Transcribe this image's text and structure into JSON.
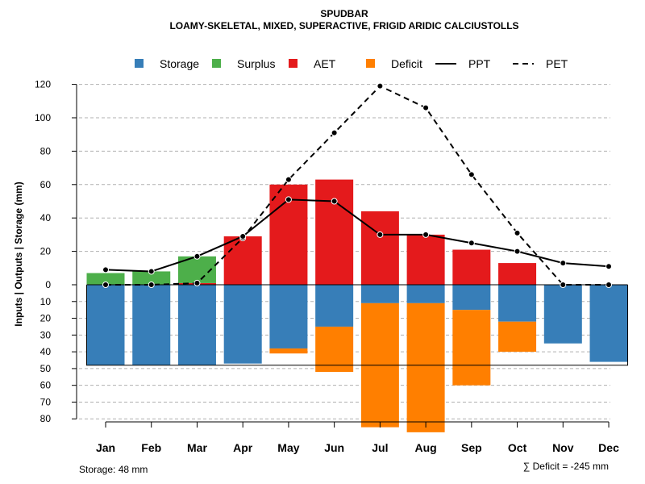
{
  "chart_data": {
    "type": "bar",
    "title": "SPUDBAR",
    "subtitle": "LOAMY-SKELETAL, MIXED, SUPERACTIVE, FRIGID ARIDIC CALCIUSTOLLS",
    "ylabel": "Inputs | Outputs | Storage    (mm)",
    "ylim_upper": [
      0,
      120
    ],
    "ylim_lower": [
      0,
      80
    ],
    "upper_ticks": [
      0,
      20,
      40,
      60,
      80,
      100,
      120
    ],
    "lower_ticks": [
      10,
      20,
      30,
      40,
      50,
      60,
      70,
      80
    ],
    "categories": [
      "Jan",
      "Feb",
      "Mar",
      "Apr",
      "May",
      "Jun",
      "Jul",
      "Aug",
      "Sep",
      "Oct",
      "Nov",
      "Dec"
    ],
    "legend": [
      "Storage",
      "Surplus",
      "AET",
      "Deficit",
      "PPT",
      "PET"
    ],
    "colors": {
      "Storage": "#377eb8",
      "Surplus": "#4daf4a",
      "AET": "#e41a1c",
      "Deficit": "#ff7f00",
      "PPT": "#000000",
      "PET": "#000000"
    },
    "series": [
      {
        "name": "Surplus",
        "values": [
          7,
          8,
          16,
          0,
          0,
          0,
          0,
          0,
          0,
          0,
          0,
          0
        ]
      },
      {
        "name": "AET",
        "values": [
          0,
          0,
          1,
          29,
          60,
          63,
          44,
          30,
          21,
          13,
          0,
          0
        ]
      },
      {
        "name": "Storage",
        "values": [
          48,
          48,
          48,
          47,
          38,
          25,
          11,
          11,
          15,
          22,
          35,
          46
        ]
      },
      {
        "name": "Deficit",
        "values": [
          0,
          0,
          0,
          0,
          3,
          27,
          74,
          77,
          45,
          18,
          0,
          0
        ]
      },
      {
        "name": "PPT",
        "values": [
          9,
          8,
          17,
          29,
          51,
          50,
          30,
          30,
          25,
          20,
          13,
          11
        ]
      },
      {
        "name": "PET",
        "values": [
          0,
          0,
          1,
          28,
          63,
          91,
          119,
          106,
          66,
          31,
          0,
          0
        ]
      }
    ],
    "storage_capacity": 48,
    "storage_note": "Storage: 48 mm",
    "deficit_note": "∑ Deficit = -245 mm"
  }
}
